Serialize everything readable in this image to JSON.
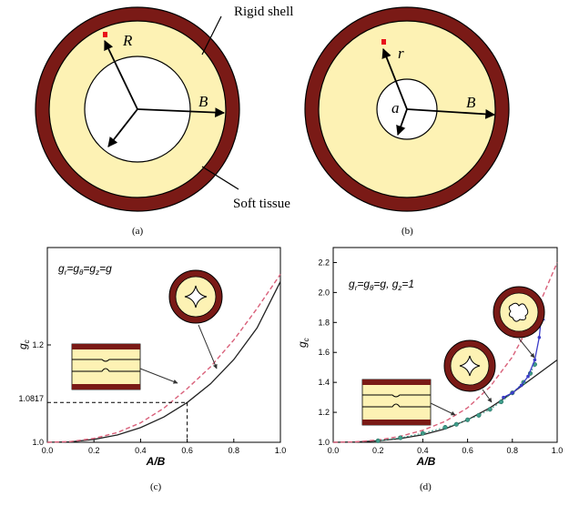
{
  "panel_a": {
    "label": "(a)",
    "rigid_shell": "Rigid shell",
    "soft_tissue": "Soft tissue",
    "R": "R",
    "B": "B"
  },
  "panel_b": {
    "label": "(b)",
    "r": "r",
    "a": "a",
    "B": "B"
  },
  "colors": {
    "shell": "#7a1a16",
    "tissue": "#fdf2b4",
    "dashed": "#d9607a",
    "solid": "#222222",
    "marker": "#e8111a",
    "curve_d_blue": "#3b3cc8",
    "points_d_teal": "#3f9d8a"
  },
  "chart_data": [
    {
      "type": "line",
      "panel_label": "(c)",
      "annotation": "g_r=g_θ=g_z=g",
      "xlabel": "A/B",
      "ylabel": "g_c",
      "xlim": [
        0,
        1.0
      ],
      "ylim": [
        1.0,
        1.4
      ],
      "x_ticks": [
        "0.0",
        "0.2",
        "0.4",
        "0.6",
        "0.8",
        "1.0"
      ],
      "y_ticks": [
        "1.0",
        "1.2"
      ],
      "marked_value": "1.0817",
      "marked_point": [
        0.6,
        1.0817
      ],
      "series": [
        {
          "style": "solid",
          "x": [
            0,
            0.1,
            0.2,
            0.3,
            0.4,
            0.5,
            0.6,
            0.7,
            0.8,
            0.9,
            1.0
          ],
          "y": [
            1.0,
            1.001,
            1.006,
            1.015,
            1.03,
            1.052,
            1.0817,
            1.12,
            1.17,
            1.235,
            1.33
          ]
        },
        {
          "style": "dashed",
          "x": [
            0,
            0.1,
            0.2,
            0.3,
            0.4,
            0.5,
            0.6,
            0.7,
            0.8,
            0.9,
            1.0
          ],
          "y": [
            1.0,
            1.0015,
            1.008,
            1.02,
            1.04,
            1.07,
            1.11,
            1.155,
            1.21,
            1.275,
            1.345
          ]
        }
      ]
    },
    {
      "type": "line",
      "panel_label": "(d)",
      "annotation": "g_r=g_θ=g, g_z=1",
      "xlabel": "A/B",
      "ylabel": "g_c",
      "xlim": [
        0,
        1.0
      ],
      "ylim": [
        1.0,
        2.3
      ],
      "x_ticks": [
        "0.0",
        "0.2",
        "0.4",
        "0.6",
        "0.8",
        "1.0"
      ],
      "y_ticks": [
        "1.0",
        "1.2",
        "1.4",
        "1.6",
        "1.8",
        "2.0",
        "2.2"
      ],
      "series": [
        {
          "style": "solid",
          "x": [
            0,
            0.1,
            0.2,
            0.3,
            0.4,
            0.5,
            0.6,
            0.7,
            0.8,
            0.9,
            1.0
          ],
          "y": [
            1.0,
            1.002,
            1.01,
            1.025,
            1.05,
            1.09,
            1.15,
            1.23,
            1.33,
            1.44,
            1.55
          ]
        },
        {
          "style": "dashed",
          "x": [
            0,
            0.1,
            0.2,
            0.3,
            0.4,
            0.5,
            0.6,
            0.7,
            0.8,
            0.9,
            1.0
          ],
          "y": [
            1.0,
            1.003,
            1.015,
            1.04,
            1.08,
            1.14,
            1.23,
            1.37,
            1.57,
            1.85,
            2.2
          ]
        },
        {
          "style": "points",
          "x": [
            0.2,
            0.3,
            0.4,
            0.5,
            0.55,
            0.6,
            0.65,
            0.7,
            0.75,
            0.8,
            0.85,
            0.88,
            0.9
          ],
          "y": [
            1.01,
            1.03,
            1.06,
            1.1,
            1.12,
            1.15,
            1.18,
            1.22,
            1.27,
            1.33,
            1.4,
            1.46,
            1.52
          ]
        },
        {
          "style": "curve",
          "x": [
            0.76,
            0.8,
            0.84,
            0.87,
            0.9,
            0.92,
            0.93
          ],
          "y": [
            1.3,
            1.33,
            1.38,
            1.44,
            1.55,
            1.7,
            1.85
          ]
        }
      ]
    }
  ]
}
